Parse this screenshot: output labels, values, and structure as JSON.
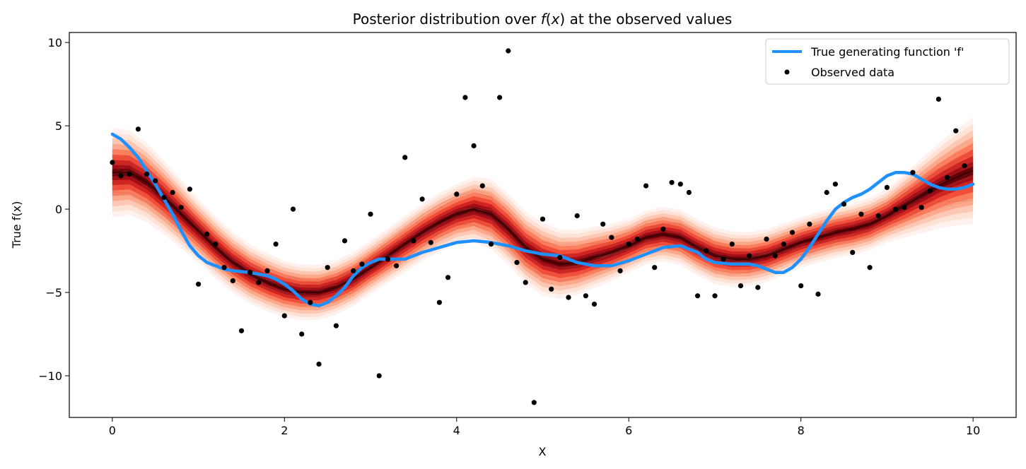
{
  "chart_data": {
    "type": "line",
    "title": "Posterior distribution over f(x) at the observed values",
    "title_parts": [
      "Posterior distribution over ",
      "f",
      "(",
      "x",
      ")",
      " at the observed values"
    ],
    "xlabel": "X",
    "ylabel": "True f(x)",
    "xlim": [
      -0.5,
      10.5
    ],
    "ylim": [
      -12.5,
      10.6
    ],
    "xticks": [
      0,
      2,
      4,
      6,
      8,
      10
    ],
    "yticks": [
      -10,
      -5,
      0,
      5,
      10
    ],
    "xtick_labels": [
      "0",
      "2",
      "4",
      "6",
      "8",
      "10"
    ],
    "ytick_labels": [
      "−10",
      "−5",
      "0",
      "5",
      "10"
    ],
    "legend": {
      "placement": "top-right",
      "entries": [
        "True generating function 'f'",
        "Observed data"
      ]
    },
    "colors": {
      "true_function": "#1e90ff",
      "observed": "#000000",
      "band": "#b2182b"
    },
    "posterior_median": [
      {
        "x": 0.0,
        "y": 2.2
      },
      {
        "x": 0.2,
        "y": 2.2
      },
      {
        "x": 0.4,
        "y": 1.6
      },
      {
        "x": 0.6,
        "y": 0.7
      },
      {
        "x": 0.8,
        "y": -0.3
      },
      {
        "x": 1.0,
        "y": -1.3
      },
      {
        "x": 1.2,
        "y": -2.3
      },
      {
        "x": 1.4,
        "y": -3.2
      },
      {
        "x": 1.6,
        "y": -3.9
      },
      {
        "x": 1.8,
        "y": -4.4
      },
      {
        "x": 2.0,
        "y": -4.8
      },
      {
        "x": 2.2,
        "y": -5.0
      },
      {
        "x": 2.4,
        "y": -5.0
      },
      {
        "x": 2.6,
        "y": -4.7
      },
      {
        "x": 2.8,
        "y": -4.2
      },
      {
        "x": 3.0,
        "y": -3.5
      },
      {
        "x": 3.2,
        "y": -2.8
      },
      {
        "x": 3.4,
        "y": -2.1
      },
      {
        "x": 3.6,
        "y": -1.4
      },
      {
        "x": 3.8,
        "y": -0.8
      },
      {
        "x": 4.0,
        "y": -0.3
      },
      {
        "x": 4.2,
        "y": 0.0
      },
      {
        "x": 4.4,
        "y": -0.3
      },
      {
        "x": 4.6,
        "y": -1.2
      },
      {
        "x": 4.8,
        "y": -2.3
      },
      {
        "x": 5.0,
        "y": -3.0
      },
      {
        "x": 5.2,
        "y": -3.3
      },
      {
        "x": 5.4,
        "y": -3.2
      },
      {
        "x": 5.6,
        "y": -2.9
      },
      {
        "x": 5.8,
        "y": -2.6
      },
      {
        "x": 6.0,
        "y": -2.2
      },
      {
        "x": 6.2,
        "y": -1.7
      },
      {
        "x": 6.4,
        "y": -1.5
      },
      {
        "x": 6.6,
        "y": -1.7
      },
      {
        "x": 6.8,
        "y": -2.3
      },
      {
        "x": 7.0,
        "y": -2.8
      },
      {
        "x": 7.2,
        "y": -3.0
      },
      {
        "x": 7.4,
        "y": -3.0
      },
      {
        "x": 7.6,
        "y": -2.8
      },
      {
        "x": 7.8,
        "y": -2.4
      },
      {
        "x": 8.0,
        "y": -2.0
      },
      {
        "x": 8.2,
        "y": -1.7
      },
      {
        "x": 8.4,
        "y": -1.4
      },
      {
        "x": 8.6,
        "y": -1.2
      },
      {
        "x": 8.8,
        "y": -0.9
      },
      {
        "x": 9.0,
        "y": -0.4
      },
      {
        "x": 9.2,
        "y": 0.2
      },
      {
        "x": 9.4,
        "y": 0.8
      },
      {
        "x": 9.6,
        "y": 1.4
      },
      {
        "x": 9.8,
        "y": 1.9
      },
      {
        "x": 10.0,
        "y": 2.3
      }
    ],
    "band_halfwidth": [
      {
        "x": 0.0,
        "y": 2.7
      },
      {
        "x": 1.0,
        "y": 1.9
      },
      {
        "x": 2.0,
        "y": 1.7
      },
      {
        "x": 3.0,
        "y": 1.6
      },
      {
        "x": 4.0,
        "y": 1.8
      },
      {
        "x": 4.4,
        "y": 2.1
      },
      {
        "x": 5.0,
        "y": 2.2
      },
      {
        "x": 6.0,
        "y": 1.6
      },
      {
        "x": 7.0,
        "y": 1.7
      },
      {
        "x": 8.0,
        "y": 1.5
      },
      {
        "x": 9.0,
        "y": 1.6
      },
      {
        "x": 10.0,
        "y": 3.2
      }
    ],
    "true_function": [
      {
        "x": 0.0,
        "y": 4.5
      },
      {
        "x": 0.1,
        "y": 4.2
      },
      {
        "x": 0.2,
        "y": 3.7
      },
      {
        "x": 0.3,
        "y": 3.1
      },
      {
        "x": 0.4,
        "y": 2.3
      },
      {
        "x": 0.5,
        "y": 1.5
      },
      {
        "x": 0.6,
        "y": 0.6
      },
      {
        "x": 0.7,
        "y": -0.3
      },
      {
        "x": 0.8,
        "y": -1.3
      },
      {
        "x": 0.9,
        "y": -2.2
      },
      {
        "x": 1.0,
        "y": -2.8
      },
      {
        "x": 1.1,
        "y": -3.2
      },
      {
        "x": 1.2,
        "y": -3.4
      },
      {
        "x": 1.3,
        "y": -3.6
      },
      {
        "x": 1.4,
        "y": -3.7
      },
      {
        "x": 1.6,
        "y": -3.8
      },
      {
        "x": 1.8,
        "y": -4.0
      },
      {
        "x": 1.9,
        "y": -4.2
      },
      {
        "x": 2.0,
        "y": -4.5
      },
      {
        "x": 2.1,
        "y": -4.9
      },
      {
        "x": 2.2,
        "y": -5.4
      },
      {
        "x": 2.3,
        "y": -5.7
      },
      {
        "x": 2.4,
        "y": -5.8
      },
      {
        "x": 2.5,
        "y": -5.6
      },
      {
        "x": 2.6,
        "y": -5.2
      },
      {
        "x": 2.7,
        "y": -4.7
      },
      {
        "x": 2.8,
        "y": -4.0
      },
      {
        "x": 2.9,
        "y": -3.5
      },
      {
        "x": 3.0,
        "y": -3.2
      },
      {
        "x": 3.1,
        "y": -3.0
      },
      {
        "x": 3.2,
        "y": -3.0
      },
      {
        "x": 3.4,
        "y": -3.0
      },
      {
        "x": 3.6,
        "y": -2.6
      },
      {
        "x": 3.8,
        "y": -2.3
      },
      {
        "x": 4.0,
        "y": -2.0
      },
      {
        "x": 4.2,
        "y": -1.9
      },
      {
        "x": 4.4,
        "y": -2.0
      },
      {
        "x": 4.6,
        "y": -2.2
      },
      {
        "x": 4.8,
        "y": -2.5
      },
      {
        "x": 5.0,
        "y": -2.7
      },
      {
        "x": 5.2,
        "y": -2.8
      },
      {
        "x": 5.4,
        "y": -3.2
      },
      {
        "x": 5.6,
        "y": -3.4
      },
      {
        "x": 5.8,
        "y": -3.4
      },
      {
        "x": 6.0,
        "y": -3.1
      },
      {
        "x": 6.2,
        "y": -2.7
      },
      {
        "x": 6.4,
        "y": -2.3
      },
      {
        "x": 6.6,
        "y": -2.2
      },
      {
        "x": 6.8,
        "y": -2.6
      },
      {
        "x": 6.9,
        "y": -3.0
      },
      {
        "x": 7.0,
        "y": -3.2
      },
      {
        "x": 7.2,
        "y": -3.3
      },
      {
        "x": 7.4,
        "y": -3.3
      },
      {
        "x": 7.5,
        "y": -3.4
      },
      {
        "x": 7.6,
        "y": -3.6
      },
      {
        "x": 7.7,
        "y": -3.8
      },
      {
        "x": 7.8,
        "y": -3.8
      },
      {
        "x": 7.9,
        "y": -3.5
      },
      {
        "x": 8.0,
        "y": -3.0
      },
      {
        "x": 8.1,
        "y": -2.3
      },
      {
        "x": 8.2,
        "y": -1.5
      },
      {
        "x": 8.3,
        "y": -0.7
      },
      {
        "x": 8.4,
        "y": 0.0
      },
      {
        "x": 8.5,
        "y": 0.4
      },
      {
        "x": 8.6,
        "y": 0.7
      },
      {
        "x": 8.7,
        "y": 0.9
      },
      {
        "x": 8.8,
        "y": 1.2
      },
      {
        "x": 8.9,
        "y": 1.6
      },
      {
        "x": 9.0,
        "y": 2.0
      },
      {
        "x": 9.1,
        "y": 2.2
      },
      {
        "x": 9.2,
        "y": 2.2
      },
      {
        "x": 9.3,
        "y": 2.1
      },
      {
        "x": 9.4,
        "y": 1.8
      },
      {
        "x": 9.5,
        "y": 1.5
      },
      {
        "x": 9.6,
        "y": 1.3
      },
      {
        "x": 9.7,
        "y": 1.2
      },
      {
        "x": 9.8,
        "y": 1.2
      },
      {
        "x": 9.9,
        "y": 1.3
      },
      {
        "x": 10.0,
        "y": 1.5
      }
    ],
    "observed": [
      {
        "x": 0.0,
        "y": 2.8
      },
      {
        "x": 0.1,
        "y": 2.0
      },
      {
        "x": 0.2,
        "y": 2.1
      },
      {
        "x": 0.3,
        "y": 4.8
      },
      {
        "x": 0.4,
        "y": 2.1
      },
      {
        "x": 0.5,
        "y": 1.7
      },
      {
        "x": 0.6,
        "y": 0.7
      },
      {
        "x": 0.7,
        "y": 1.0
      },
      {
        "x": 0.8,
        "y": 0.1
      },
      {
        "x": 0.9,
        "y": 1.2
      },
      {
        "x": 1.0,
        "y": -4.5
      },
      {
        "x": 1.1,
        "y": -1.5
      },
      {
        "x": 1.2,
        "y": -2.1
      },
      {
        "x": 1.3,
        "y": -3.5
      },
      {
        "x": 1.4,
        "y": -4.3
      },
      {
        "x": 1.5,
        "y": -7.3
      },
      {
        "x": 1.6,
        "y": -3.8
      },
      {
        "x": 1.7,
        "y": -4.4
      },
      {
        "x": 1.8,
        "y": -3.7
      },
      {
        "x": 1.9,
        "y": -2.1
      },
      {
        "x": 2.0,
        "y": -6.4
      },
      {
        "x": 2.1,
        "y": 0.0
      },
      {
        "x": 2.2,
        "y": -7.5
      },
      {
        "x": 2.3,
        "y": -5.6
      },
      {
        "x": 2.4,
        "y": -9.3
      },
      {
        "x": 2.5,
        "y": -3.5
      },
      {
        "x": 2.6,
        "y": -7.0
      },
      {
        "x": 2.7,
        "y": -1.9
      },
      {
        "x": 2.8,
        "y": -3.7
      },
      {
        "x": 2.9,
        "y": -3.3
      },
      {
        "x": 3.0,
        "y": -0.3
      },
      {
        "x": 3.1,
        "y": -10.0
      },
      {
        "x": 3.2,
        "y": -3.0
      },
      {
        "x": 3.3,
        "y": -3.4
      },
      {
        "x": 3.4,
        "y": 3.1
      },
      {
        "x": 3.5,
        "y": -1.9
      },
      {
        "x": 3.6,
        "y": 0.6
      },
      {
        "x": 3.7,
        "y": -2.0
      },
      {
        "x": 3.8,
        "y": -5.6
      },
      {
        "x": 3.9,
        "y": -4.1
      },
      {
        "x": 4.0,
        "y": 0.9
      },
      {
        "x": 4.1,
        "y": 6.7
      },
      {
        "x": 4.2,
        "y": 3.8
      },
      {
        "x": 4.3,
        "y": 1.4
      },
      {
        "x": 4.4,
        "y": -2.1
      },
      {
        "x": 4.5,
        "y": 6.7
      },
      {
        "x": 4.6,
        "y": 9.5
      },
      {
        "x": 4.7,
        "y": -3.2
      },
      {
        "x": 4.8,
        "y": -4.4
      },
      {
        "x": 4.9,
        "y": -11.6
      },
      {
        "x": 5.0,
        "y": -0.6
      },
      {
        "x": 5.1,
        "y": -4.8
      },
      {
        "x": 5.2,
        "y": -2.9
      },
      {
        "x": 5.3,
        "y": -5.3
      },
      {
        "x": 5.4,
        "y": -0.4
      },
      {
        "x": 5.5,
        "y": -5.2
      },
      {
        "x": 5.6,
        "y": -5.7
      },
      {
        "x": 5.7,
        "y": -0.9
      },
      {
        "x": 5.8,
        "y": -1.7
      },
      {
        "x": 5.9,
        "y": -3.7
      },
      {
        "x": 6.0,
        "y": -2.1
      },
      {
        "x": 6.1,
        "y": -1.8
      },
      {
        "x": 6.2,
        "y": 1.4
      },
      {
        "x": 6.3,
        "y": -3.5
      },
      {
        "x": 6.4,
        "y": -1.2
      },
      {
        "x": 6.5,
        "y": 1.6
      },
      {
        "x": 6.6,
        "y": 1.5
      },
      {
        "x": 6.7,
        "y": 1.0
      },
      {
        "x": 6.8,
        "y": -5.2
      },
      {
        "x": 6.9,
        "y": -2.5
      },
      {
        "x": 7.0,
        "y": -5.2
      },
      {
        "x": 7.1,
        "y": -3.0
      },
      {
        "x": 7.2,
        "y": -2.1
      },
      {
        "x": 7.3,
        "y": -4.6
      },
      {
        "x": 7.4,
        "y": -2.8
      },
      {
        "x": 7.5,
        "y": -4.7
      },
      {
        "x": 7.6,
        "y": -1.8
      },
      {
        "x": 7.7,
        "y": -2.8
      },
      {
        "x": 7.8,
        "y": -2.1
      },
      {
        "x": 7.9,
        "y": -1.4
      },
      {
        "x": 8.0,
        "y": -4.6
      },
      {
        "x": 8.1,
        "y": -0.9
      },
      {
        "x": 8.2,
        "y": -5.1
      },
      {
        "x": 8.3,
        "y": 1.0
      },
      {
        "x": 8.4,
        "y": 1.5
      },
      {
        "x": 8.5,
        "y": 0.3
      },
      {
        "x": 8.6,
        "y": -2.6
      },
      {
        "x": 8.7,
        "y": -0.3
      },
      {
        "x": 8.8,
        "y": -3.5
      },
      {
        "x": 8.9,
        "y": -0.4
      },
      {
        "x": 9.0,
        "y": 1.3
      },
      {
        "x": 9.1,
        "y": 0.0
      },
      {
        "x": 9.2,
        "y": 0.1
      },
      {
        "x": 9.3,
        "y": 2.2
      },
      {
        "x": 9.4,
        "y": 0.1
      },
      {
        "x": 9.5,
        "y": 1.1
      },
      {
        "x": 9.6,
        "y": 6.6
      },
      {
        "x": 9.7,
        "y": 1.9
      },
      {
        "x": 9.8,
        "y": 4.7
      },
      {
        "x": 9.9,
        "y": 2.6
      }
    ]
  }
}
